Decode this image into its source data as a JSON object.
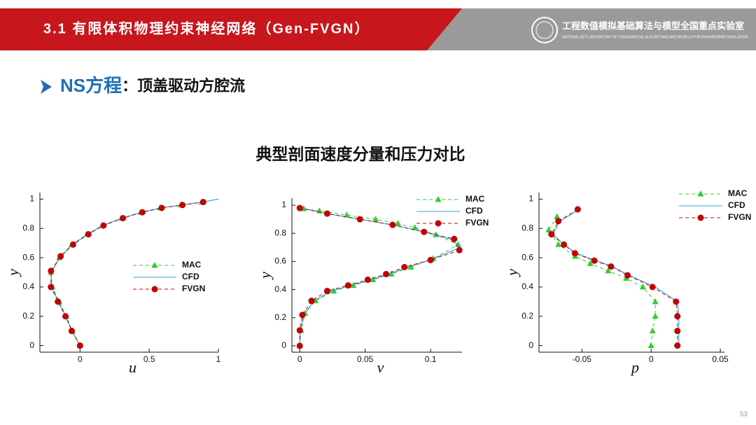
{
  "header": {
    "title": "3.1 有限体积物理约束神经网络（Gen-FVGN）",
    "lab": "工程数值模拟基础算法与模型全国重点实验室",
    "lab_en": "NATIONAL KEY LABORATORY OF FUNDAMENTAL ALGORITHMS AND MODELS FOR ENGINEERING SIMULATION"
  },
  "heading": {
    "label": "NS方程",
    "text": "：顶盖驱动方腔流"
  },
  "subtitle": "典型剖面速度分量和压力对比",
  "page_number": "53",
  "chart_data": [
    {
      "type": "line",
      "xlabel": "u",
      "ylabel": "y",
      "xlim": [
        -0.29,
        1
      ],
      "ylim": [
        -0.045,
        1.045
      ],
      "xticks": [
        0,
        0.5,
        1
      ],
      "yticks": [
        0,
        0.2,
        0.4,
        0.6,
        0.8,
        1
      ],
      "legend": "right",
      "series": [
        {
          "name": "MAC",
          "color": "#33cc33",
          "marker": "triangle",
          "dash": true,
          "y": [
            0,
            0.1,
            0.2,
            0.3,
            0.4,
            0.5,
            0.6,
            0.69,
            0.76,
            0.82,
            0.87,
            0.91,
            0.94,
            0.96,
            0.98
          ],
          "x": [
            0,
            -0.055,
            -0.1,
            -0.15,
            -0.2,
            -0.21,
            -0.15,
            -0.06,
            0.05,
            0.16,
            0.3,
            0.44,
            0.58,
            0.73,
            0.88
          ]
        },
        {
          "name": "CFD",
          "color": "#33aadd",
          "marker": "none",
          "dash": false,
          "y": [
            0,
            0.1,
            0.2,
            0.3,
            0.4,
            0.5,
            0.6,
            0.69,
            0.76,
            0.82,
            0.87,
            0.91,
            0.94,
            0.96,
            0.98,
            1
          ],
          "x": [
            0,
            -0.058,
            -0.103,
            -0.155,
            -0.205,
            -0.21,
            -0.145,
            -0.055,
            0.055,
            0.165,
            0.305,
            0.445,
            0.585,
            0.735,
            0.885,
            1
          ]
        },
        {
          "name": "FVGN",
          "color": "#cc0000",
          "marker": "circle",
          "dash": true,
          "y": [
            0,
            0.1,
            0.2,
            0.3,
            0.4,
            0.51,
            0.61,
            0.69,
            0.76,
            0.82,
            0.87,
            0.91,
            0.94,
            0.96,
            0.98
          ],
          "x": [
            0,
            -0.06,
            -0.105,
            -0.16,
            -0.21,
            -0.21,
            -0.14,
            -0.05,
            0.06,
            0.17,
            0.31,
            0.45,
            0.59,
            0.74,
            0.89
          ]
        }
      ]
    },
    {
      "type": "line",
      "xlabel": "v",
      "ylabel": "y",
      "xlim": [
        -0.006,
        0.124
      ],
      "ylim": [
        -0.045,
        1.05
      ],
      "xticks": [
        0,
        0.05,
        0.1
      ],
      "yticks": [
        0,
        0.2,
        0.4,
        0.6,
        0.8,
        1
      ],
      "legend": "upper right",
      "series": [
        {
          "name": "MAC",
          "color": "#33cc33",
          "marker": "triangle",
          "dash": true,
          "y": [
            0,
            0.11,
            0.23,
            0.32,
            0.39,
            0.43,
            0.47,
            0.51,
            0.56,
            0.62,
            0.72,
            0.79,
            0.84,
            0.87,
            0.9,
            0.93,
            0.96,
            0.975
          ],
          "x": [
            0,
            0.001,
            0.004,
            0.012,
            0.026,
            0.041,
            0.056,
            0.07,
            0.085,
            0.102,
            0.121,
            0.104,
            0.088,
            0.075,
            0.058,
            0.036,
            0.015,
            0.003
          ]
        },
        {
          "name": "CFD",
          "color": "#33aadd",
          "marker": "none",
          "dash": false,
          "y": [
            0,
            0.11,
            0.22,
            0.32,
            0.39,
            0.43,
            0.47,
            0.51,
            0.56,
            0.62,
            0.7,
            0.76,
            0.81,
            0.86,
            0.9,
            0.94,
            0.98
          ],
          "x": [
            0,
            0.0005,
            0.003,
            0.011,
            0.024,
            0.039,
            0.054,
            0.068,
            0.083,
            0.102,
            0.123,
            0.115,
            0.095,
            0.071,
            0.046,
            0.021,
            0.001
          ]
        },
        {
          "name": "FVGN",
          "color": "#cc0000",
          "marker": "circle",
          "dash": true,
          "y": [
            0,
            0.11,
            0.22,
            0.32,
            0.39,
            0.43,
            0.47,
            0.51,
            0.56,
            0.61,
            0.68,
            0.76,
            0.81,
            0.86,
            0.9,
            0.94,
            0.98
          ],
          "x": [
            0,
            0,
            0.002,
            0.009,
            0.021,
            0.037,
            0.052,
            0.066,
            0.08,
            0.1,
            0.122,
            0.118,
            0.095,
            0.071,
            0.046,
            0.021,
            0
          ]
        }
      ]
    },
    {
      "type": "line",
      "xlabel": "p",
      "ylabel": "y",
      "xlim": [
        -0.081,
        0.053
      ],
      "ylim": [
        -0.045,
        1.045
      ],
      "xticks": [
        -0.05,
        0,
        0.05
      ],
      "yticks": [
        0,
        0.2,
        0.4,
        0.6,
        0.8,
        1
      ],
      "legend": "upper right",
      "series": [
        {
          "name": "MAC",
          "color": "#33cc33",
          "marker": "triangle",
          "dash": true,
          "y": [
            0,
            0.1,
            0.2,
            0.3,
            0.4,
            0.46,
            0.51,
            0.56,
            0.61,
            0.69,
            0.79,
            0.88
          ],
          "x": [
            0,
            0.001,
            0.003,
            0.003,
            -0.006,
            -0.018,
            -0.031,
            -0.044,
            -0.055,
            -0.067,
            -0.074,
            -0.068
          ]
        },
        {
          "name": "CFD",
          "color": "#33aadd",
          "marker": "none",
          "dash": false,
          "y": [
            0,
            0.1,
            0.2,
            0.3,
            0.4,
            0.48,
            0.54,
            0.58,
            0.63,
            0.69,
            0.76,
            0.85,
            0.93
          ],
          "x": [
            0.02,
            0.02,
            0.02,
            0.019,
            0.003,
            -0.016,
            -0.028,
            -0.04,
            -0.054,
            -0.063,
            -0.071,
            -0.066,
            -0.052
          ]
        },
        {
          "name": "FVGN",
          "color": "#cc0000",
          "marker": "circle",
          "dash": true,
          "y": [
            0,
            0.1,
            0.2,
            0.3,
            0.4,
            0.48,
            0.54,
            0.58,
            0.63,
            0.69,
            0.76,
            0.85,
            0.93
          ],
          "x": [
            0.019,
            0.019,
            0.019,
            0.018,
            0.001,
            -0.017,
            -0.029,
            -0.041,
            -0.055,
            -0.063,
            -0.072,
            -0.067,
            -0.053
          ]
        }
      ]
    }
  ]
}
